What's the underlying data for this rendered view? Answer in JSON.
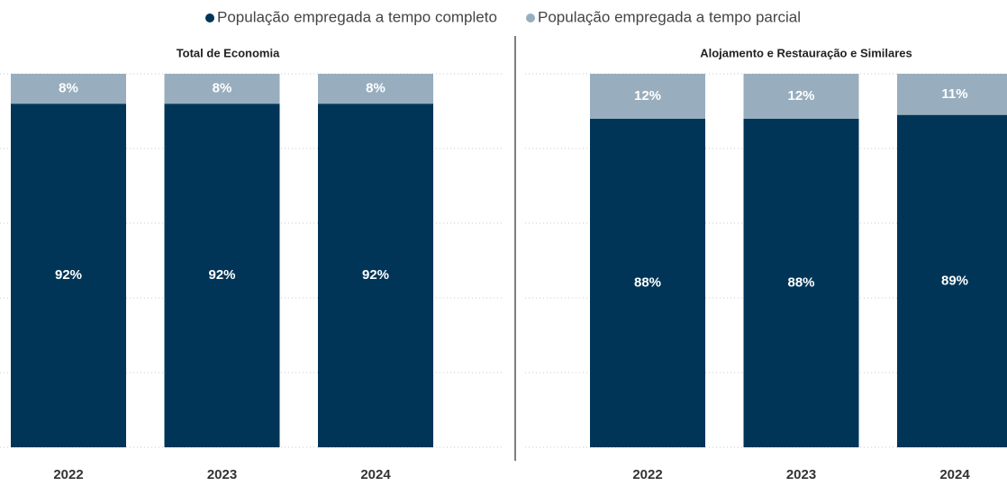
{
  "chart_data": [
    {
      "type": "stacked_bar",
      "title": "Total de Economia",
      "categories": [
        "2022",
        "2023",
        "2024"
      ],
      "series": [
        {
          "name": "População empregada a tempo completo",
          "color": "#003557",
          "values": [
            92,
            92,
            92
          ],
          "value_labels": [
            "92%",
            "92%",
            "92%"
          ]
        },
        {
          "name": "População empregada a tempo parcial",
          "color": "#98aebe",
          "values": [
            8,
            8,
            8
          ],
          "value_labels": [
            "8%",
            "8%",
            "8%"
          ]
        }
      ],
      "ylim": [
        0,
        100
      ],
      "yticks": [
        0,
        20,
        40,
        60,
        80,
        100
      ],
      "grid": true
    },
    {
      "type": "stacked_bar",
      "title": "Alojamento e Restauração e Similares",
      "categories": [
        "2022",
        "2023",
        "2024"
      ],
      "series": [
        {
          "color": "#003557",
          "values": [
            88,
            88,
            89
          ],
          "value_labels": [
            "88%",
            "88%",
            "89%"
          ]
        },
        {
          "color": "#98aebe",
          "values": [
            12,
            12,
            11
          ],
          "value_labels": [
            "12%",
            "12%",
            "11%"
          ]
        }
      ],
      "ylim": [
        0,
        100
      ],
      "yticks": [
        0,
        20,
        40,
        60,
        80,
        100
      ],
      "grid": true
    }
  ]
}
